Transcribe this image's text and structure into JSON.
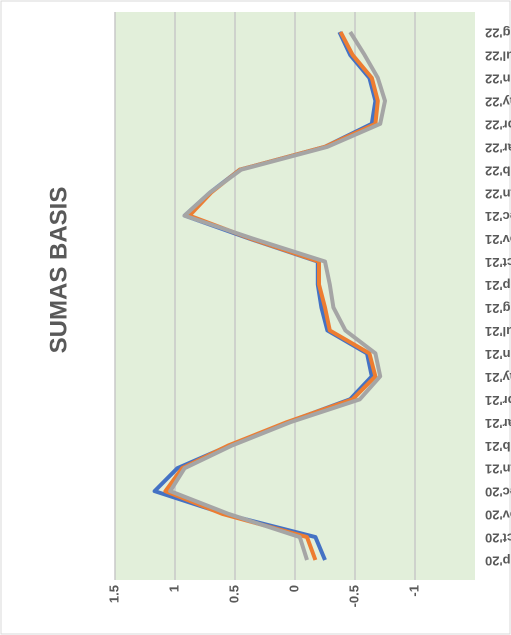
{
  "chart_data": {
    "type": "line",
    "title": "SUMAS BASIS",
    "categories": [
      "Sep'20",
      "Oct'20",
      "Nov'20",
      "Dec'20",
      "Jan'21",
      "Feb'21",
      "Mar'21",
      "Apr'21",
      "May'21",
      "Jun'21",
      "Jul'21",
      "Aug'21",
      "Sep'21",
      "Oct'21",
      "Nov'21",
      "Dec'21",
      "Jan'22",
      "Feb'22",
      "Mar'22",
      "Apr'22",
      "May'22",
      "Jun'22",
      "Jul'22",
      "Aug'22"
    ],
    "series": [
      {
        "color": "#4472c4",
        "values": [
          -0.25,
          -0.17,
          0.58,
          1.17,
          0.98,
          0.54,
          0.06,
          -0.46,
          -0.64,
          -0.6,
          -0.27,
          -0.22,
          -0.19,
          -0.19,
          0.38,
          0.92,
          0.71,
          0.46,
          -0.25,
          -0.64,
          -0.67,
          -0.62,
          -0.46,
          -0.37
        ]
      },
      {
        "color": "#ed7d31",
        "values": [
          -0.17,
          -0.1,
          0.6,
          1.08,
          0.94,
          0.55,
          0.07,
          -0.48,
          -0.67,
          -0.62,
          -0.29,
          -0.25,
          -0.2,
          -0.2,
          0.37,
          0.88,
          0.7,
          0.46,
          -0.25,
          -0.67,
          -0.69,
          -0.64,
          -0.48,
          -0.38
        ]
      },
      {
        "color": "#a5a5a5",
        "values": [
          -0.1,
          -0.04,
          0.55,
          1.04,
          0.92,
          0.52,
          0.04,
          -0.54,
          -0.71,
          -0.67,
          -0.42,
          -0.32,
          -0.29,
          -0.25,
          0.35,
          0.92,
          0.71,
          0.45,
          -0.27,
          -0.71,
          -0.75,
          -0.69,
          -0.58,
          -0.46
        ]
      }
    ],
    "ylim": [
      -1.5,
      1.5
    ],
    "yticks": [
      1.5,
      1,
      0.5,
      0,
      -0.5,
      -1
    ],
    "grid": true,
    "plot_background": "#e2efda"
  }
}
